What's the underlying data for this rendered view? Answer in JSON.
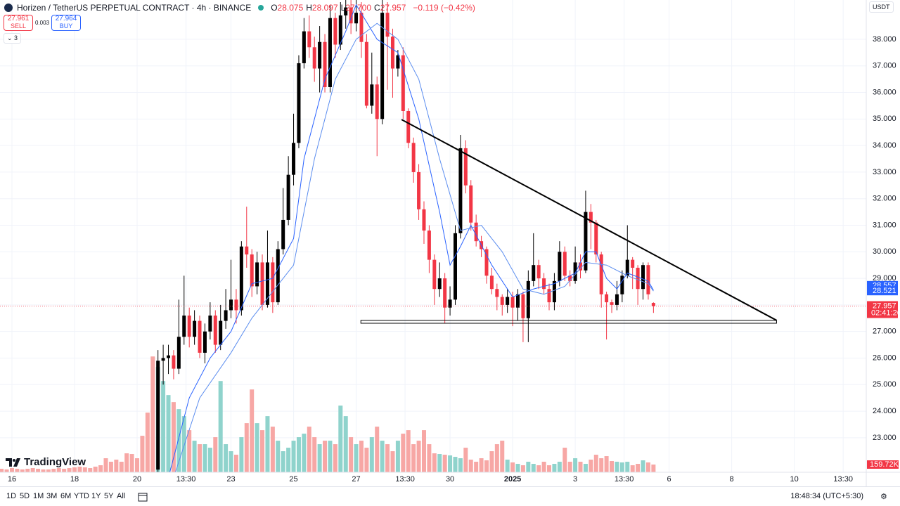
{
  "header": {
    "symbol": "Horizen / TetherUS PERPETUAL CONTRACT · 4h · BINANCE",
    "ohlc": [
      {
        "k": "O",
        "v": "28.075"
      },
      {
        "k": "H",
        "v": "28.097"
      },
      {
        "k": "L",
        "v": "27.700"
      },
      {
        "k": "C",
        "v": "27.957"
      }
    ],
    "change": "−0.119 (−0.42%)",
    "sell": {
      "price": "27.961",
      "label": "SELL"
    },
    "spread": "0.003",
    "buy": {
      "price": "27.964",
      "label": "BUY"
    },
    "indicators": "3",
    "currency": "USDT",
    "logo": "TradingView"
  },
  "toolbar": {
    "ranges": [
      "1D",
      "5D",
      "1M",
      "3M",
      "6M",
      "YTD",
      "1Y",
      "5Y",
      "All"
    ],
    "clock": "18:48:34 (UTC+5:30)"
  },
  "chart_data": {
    "type": "candlestick",
    "xlim": [
      -0.29,
      165.8
    ],
    "xticks": [
      {
        "value": 2,
        "label": "16"
      },
      {
        "value": 14,
        "label": "18"
      },
      {
        "value": 26,
        "label": "20"
      },
      {
        "value": 35.375,
        "label": "13:30"
      },
      {
        "value": 44,
        "label": "23"
      },
      {
        "value": 56,
        "label": "25"
      },
      {
        "value": 68,
        "label": "27"
      },
      {
        "value": 77.375,
        "label": "13:30"
      },
      {
        "value": 86,
        "label": "30"
      },
      {
        "value": 98,
        "label": "2025"
      },
      {
        "value": 110,
        "label": "3"
      },
      {
        "value": 119.375,
        "label": "13:30"
      },
      {
        "value": 128,
        "label": "6"
      },
      {
        "value": 140,
        "label": "8"
      },
      {
        "value": 152,
        "label": "10"
      },
      {
        "value": 161.375,
        "label": "13:30"
      }
    ],
    "ylim": [
      21.7,
      39.48
    ],
    "yticks": [
      {
        "value": 23,
        "label": "23.000"
      },
      {
        "value": 24,
        "label": "24.000"
      },
      {
        "value": 25,
        "label": "25.000"
      },
      {
        "value": 26,
        "label": "26.000"
      },
      {
        "value": 27,
        "label": "27.000"
      },
      {
        "value": 28,
        "label": "28.000"
      },
      {
        "value": 29,
        "label": "29.000"
      },
      {
        "value": 30,
        "label": "30.000"
      },
      {
        "value": 31,
        "label": "31.000"
      },
      {
        "value": 32,
        "label": "32.000"
      },
      {
        "value": 33,
        "label": "33.000"
      },
      {
        "value": 34,
        "label": "34.000"
      },
      {
        "value": 35,
        "label": "35.000"
      },
      {
        "value": 36,
        "label": "36.000"
      },
      {
        "value": 37,
        "label": "37.000"
      },
      {
        "value": 38,
        "label": "38.000"
      }
    ],
    "grid": true,
    "up_color": "#000000",
    "down_color": "#f23645",
    "volume_up_color": "#8fd3cc",
    "volume_down_color": "#f7a7a5",
    "x": [
      0,
      1,
      2,
      3,
      4,
      5,
      6,
      7,
      8,
      9,
      10,
      11,
      12,
      13,
      14,
      15,
      16,
      17,
      18,
      19,
      20,
      21,
      22,
      23,
      24,
      25,
      26,
      27,
      28,
      29,
      30,
      31,
      32,
      33,
      34,
      35,
      36,
      37,
      38,
      39,
      40,
      41,
      42,
      43,
      44,
      45,
      46,
      47,
      48,
      49,
      50,
      51,
      52,
      53,
      54,
      55,
      56,
      57,
      58,
      59,
      60,
      61,
      62,
      63,
      64,
      65,
      66,
      67,
      68,
      69,
      70,
      71,
      72,
      73,
      74,
      75,
      76,
      77,
      78,
      79,
      80,
      81,
      82,
      83,
      84,
      85,
      86,
      87,
      88,
      89,
      90,
      91,
      92,
      93,
      94,
      95,
      96,
      97,
      98,
      99,
      100,
      101,
      102,
      103,
      104,
      105,
      106,
      107,
      108,
      109,
      110,
      111,
      112,
      113,
      114,
      115,
      116,
      117,
      118,
      119,
      120,
      121,
      122,
      123,
      124,
      125
    ],
    "open": [
      null,
      null,
      null,
      null,
      null,
      null,
      null,
      null,
      null,
      null,
      null,
      null,
      null,
      null,
      null,
      null,
      null,
      null,
      null,
      null,
      null,
      null,
      null,
      null,
      null,
      null,
      null,
      null,
      null,
      null,
      21.8,
      25.9,
      26.0,
      26.1,
      25.6,
      26.8,
      27.6,
      26.8,
      27.4,
      26.2,
      27.0,
      27.6,
      26.5,
      27.4,
      27.8,
      28.2,
      27.8,
      30.2,
      29.9,
      28.7,
      29.6,
      28.0,
      29.6,
      28.1,
      30.1,
      31.2,
      32.9,
      34.1,
      37.1,
      38.3,
      37.7,
      36.9,
      37.9,
      36.2,
      38.8,
      37.8,
      38.9,
      39.2,
      38.6,
      39.0,
      37.9,
      35.5,
      36.3,
      35.0,
      39.0,
      38.1,
      36.9,
      37.4,
      35.3,
      34.1,
      33.0,
      31.6,
      30.8,
      29.7,
      28.6,
      29.0,
      27.9,
      28.2,
      30.7,
      33.9,
      32.5,
      31.1,
      30.4,
      30.1,
      29.1,
      28.6,
      28.3,
      28.0,
      28.3,
      27.9,
      28.4,
      27.5,
      28.9,
      29.5,
      29.0,
      28.6,
      28.1,
      28.9,
      30.0,
      29.1,
      28.9,
      29.6,
      29.3,
      31.5,
      31.1,
      29.9,
      28.4,
      28.1,
      28.0,
      28.4,
      29.1,
      29.7,
      29.4,
      28.6,
      29.5,
      28.075
    ],
    "high": [
      null,
      null,
      null,
      null,
      null,
      null,
      null,
      null,
      null,
      null,
      null,
      null,
      null,
      null,
      null,
      null,
      null,
      null,
      null,
      null,
      null,
      null,
      null,
      null,
      null,
      null,
      null,
      null,
      null,
      null,
      26.3,
      26.5,
      26.5,
      26.3,
      28.2,
      29.1,
      27.9,
      27.8,
      27.6,
      27.3,
      28.1,
      27.8,
      28.0,
      28.6,
      29.7,
      28.6,
      30.4,
      31.7,
      30.1,
      30.0,
      29.9,
      30.8,
      29.8,
      30.4,
      32.4,
      33.6,
      35.2,
      37.4,
      38.8,
      38.9,
      38.1,
      38.5,
      38.2,
      39.3,
      39.0,
      39.4,
      39.6,
      39.6,
      39.6,
      39.4,
      38.2,
      37.5,
      36.6,
      39.5,
      39.4,
      38.4,
      37.6,
      37.7,
      35.4,
      34.3,
      33.3,
      31.9,
      31.0,
      29.9,
      29.6,
      29.2,
      28.7,
      31.0,
      34.4,
      34.2,
      32.7,
      31.4,
      30.6,
      30.2,
      29.4,
      28.8,
      28.4,
      28.6,
      28.5,
      28.6,
      28.5,
      29.3,
      30.7,
      29.7,
      29.2,
      28.8,
      29.2,
      30.4,
      30.2,
      29.3,
      30.2,
      29.9,
      32.3,
      31.8,
      31.2,
      30.0,
      28.5,
      28.2,
      28.9,
      29.3,
      31.0,
      29.8,
      29.5,
      29.6,
      29.6,
      28.097
    ],
    "low": [
      null,
      null,
      null,
      null,
      null,
      null,
      null,
      null,
      null,
      null,
      null,
      null,
      null,
      null,
      null,
      null,
      null,
      null,
      null,
      null,
      null,
      null,
      null,
      null,
      null,
      null,
      null,
      null,
      null,
      null,
      21.6,
      25.0,
      25.4,
      25.2,
      25.4,
      26.5,
      26.4,
      26.5,
      26.0,
      25.8,
      26.7,
      26.2,
      26.3,
      27.1,
      27.5,
      27.3,
      27.6,
      29.4,
      28.3,
      28.4,
      27.8,
      27.9,
      27.7,
      28.0,
      29.9,
      31.0,
      32.5,
      33.9,
      36.9,
      37.3,
      36.4,
      36.0,
      36.0,
      36.0,
      37.3,
      37.6,
      38.4,
      38.2,
      38.3,
      37.3,
      35.4,
      35.2,
      33.6,
      34.8,
      36.1,
      35.8,
      36.6,
      35.0,
      33.9,
      32.6,
      31.2,
      30.3,
      29.2,
      28.0,
      28.3,
      27.3,
      27.6,
      28.0,
      30.5,
      32.2,
      30.8,
      30.2,
      29.8,
      28.8,
      28.4,
      27.8,
      27.6,
      27.7,
      27.2,
      27.4,
      26.6,
      26.6,
      28.7,
      28.6,
      28.4,
      27.8,
      27.8,
      28.7,
      28.9,
      28.7,
      28.8,
      29.0,
      29.2,
      30.1,
      29.6,
      27.9,
      26.7,
      27.7,
      27.8,
      28.1,
      29.0,
      28.6,
      28.0,
      28.2,
      28.2,
      27.7
    ],
    "close": [
      null,
      null,
      null,
      null,
      null,
      null,
      null,
      null,
      null,
      null,
      null,
      null,
      null,
      null,
      null,
      null,
      null,
      null,
      null,
      null,
      null,
      null,
      null,
      null,
      null,
      null,
      null,
      null,
      null,
      null,
      25.9,
      26.0,
      26.1,
      25.6,
      26.8,
      27.6,
      26.8,
      27.4,
      26.2,
      27.0,
      27.6,
      26.5,
      27.4,
      27.8,
      28.2,
      27.8,
      30.2,
      29.9,
      28.7,
      29.6,
      28.0,
      29.6,
      28.1,
      30.1,
      31.2,
      32.9,
      34.1,
      37.1,
      38.3,
      37.7,
      36.9,
      37.9,
      36.2,
      38.8,
      37.8,
      38.9,
      39.2,
      38.6,
      39.0,
      37.9,
      35.5,
      36.3,
      35.0,
      39.0,
      38.1,
      36.9,
      37.4,
      35.3,
      34.1,
      33.0,
      31.6,
      30.8,
      29.7,
      28.6,
      29.0,
      27.9,
      28.2,
      30.7,
      33.9,
      32.5,
      31.1,
      30.4,
      30.1,
      29.1,
      28.6,
      28.3,
      28.0,
      28.3,
      27.9,
      28.4,
      27.5,
      28.9,
      29.5,
      29.0,
      28.6,
      28.1,
      28.9,
      30.0,
      29.1,
      28.9,
      29.6,
      29.3,
      31.5,
      31.1,
      29.9,
      28.4,
      28.1,
      28.0,
      28.4,
      29.1,
      29.7,
      29.4,
      28.6,
      29.5,
      28.4,
      27.957
    ],
    "volume": [
      72500,
      58000,
      87000,
      72500,
      58000,
      72500,
      87000,
      72500,
      58000,
      58000,
      72500,
      87000,
      72500,
      87000,
      101500,
      116000,
      101500,
      87000,
      116000,
      145000,
      290000,
      217500,
      261000,
      217500,
      391500,
      377000,
      290000,
      754000,
      1232500,
      2392500,
      2175000,
      1885000,
      1595000,
      1450000,
      1305000,
      1160000,
      870000,
      652500,
      580000,
      580000,
      507500,
      725000,
      1885000,
      580000,
      435000,
      362500,
      725000,
      1015000,
      1711000,
      1015000,
      870000,
      1160000,
      942500,
      652500,
      435000,
      507500,
      652500,
      725000,
      797500,
      942500,
      725000,
      580000,
      652500,
      652500,
      580000,
      1377500,
      1160000,
      725000,
      580000,
      652500,
      507500,
      725000,
      942500,
      652500,
      580000,
      435000,
      652500,
      797500,
      870000,
      580000,
      652500,
      870000,
      580000,
      391500,
      377000,
      362500,
      348000,
      319000,
      290000,
      507500,
      261000,
      217500,
      290000,
      246500,
      435000,
      580000,
      652500,
      261000,
      203000,
      174000,
      145000,
      217500,
      174000,
      145000,
      217500,
      145000,
      174000,
      217500,
      507500,
      217500,
      290000,
      217500,
      174000,
      261000,
      362500,
      290000,
      333500,
      232000,
      217500,
      203000,
      217500,
      145000,
      174000,
      246500,
      203000,
      159720
    ],
    "volume_label": "159.72K",
    "moving_averages": [
      {
        "color": "#2962ff",
        "x": [
          32,
          36,
          40,
          44,
          48,
          52,
          56,
          58,
          62,
          66,
          68,
          72,
          76,
          80,
          84,
          86,
          88,
          90,
          94,
          98,
          102,
          106,
          110,
          112,
          114,
          116,
          118,
          120,
          124,
          125
        ],
        "values": [
          21.5,
          24.5,
          26.0,
          27.0,
          28.8,
          29.0,
          30.5,
          33.5,
          36.5,
          38.3,
          39.3,
          38.0,
          37.5,
          35.0,
          31.5,
          29.5,
          30.2,
          31.0,
          29.5,
          28.3,
          28.6,
          28.8,
          29.2,
          30.0,
          30.0,
          29.0,
          28.6,
          29.2,
          28.9,
          28.557
        ]
      },
      {
        "color": "#5b8def",
        "x": [
          33,
          38,
          44,
          48,
          52,
          56,
          60,
          64,
          68,
          72,
          76,
          80,
          84,
          88,
          92,
          96,
          100,
          104,
          108,
          112,
          116,
          120,
          124,
          125
        ],
        "values": [
          21.5,
          24.5,
          26.2,
          27.5,
          28.5,
          29.5,
          33.5,
          36.5,
          38.0,
          38.6,
          38.0,
          36.5,
          33.5,
          30.8,
          31.0,
          30.0,
          28.6,
          28.4,
          28.7,
          29.6,
          29.5,
          29.1,
          28.8,
          28.521
        ]
      }
    ],
    "price_labels": [
      {
        "value": 28.557,
        "color": "#2962ff"
      },
      {
        "value": 28.521,
        "color": "#2962ff"
      },
      {
        "value": 27.957,
        "color": "#f23645"
      }
    ],
    "countdown": "02:41:26",
    "trendline": {
      "x": [
        76.7,
        148.6
      ],
      "values": [
        34.98,
        27.42
      ]
    },
    "support_zone": {
      "x": [
        68.9,
        148.6
      ],
      "top": 27.42,
      "bottom": 27.31
    }
  }
}
